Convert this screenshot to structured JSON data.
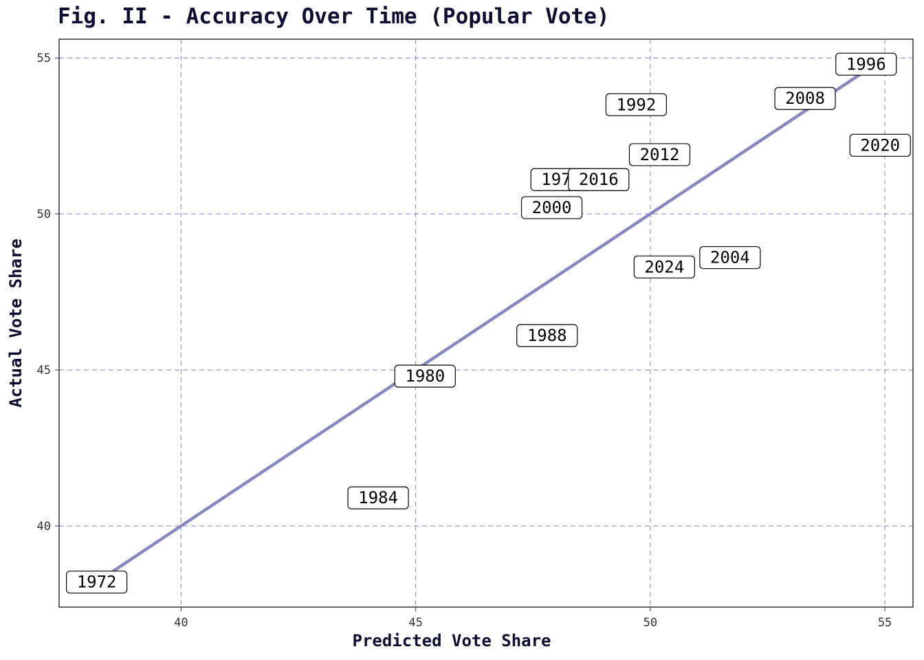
{
  "chart_data": {
    "type": "scatter",
    "title": "Fig. II - Accuracy Over Time (Popular Vote)",
    "xlabel": "Predicted Vote Share",
    "ylabel": "Actual Vote Share",
    "xlim": [
      37.4,
      55.6
    ],
    "ylim": [
      37.4,
      55.6
    ],
    "xticks": [
      40,
      45,
      50,
      55
    ],
    "yticks": [
      40,
      45,
      50,
      55
    ],
    "grid": true,
    "grid_color": "#8080cc",
    "line_color": "#8888c0",
    "reference_line": {
      "from": [
        38.2,
        38.2
      ],
      "to": [
        54.8,
        54.8
      ]
    },
    "points": [
      {
        "label": "1972",
        "x": 38.2,
        "y": 38.2
      },
      {
        "label": "1976",
        "x": 48.1,
        "y": 51.1
      },
      {
        "label": "1980",
        "x": 45.2,
        "y": 44.8
      },
      {
        "label": "1984",
        "x": 44.2,
        "y": 40.9
      },
      {
        "label": "1988",
        "x": 47.8,
        "y": 46.1
      },
      {
        "label": "1992",
        "x": 49.7,
        "y": 53.5
      },
      {
        "label": "1996",
        "x": 54.6,
        "y": 54.8
      },
      {
        "label": "2000",
        "x": 47.9,
        "y": 50.2
      },
      {
        "label": "2004",
        "x": 51.7,
        "y": 48.6
      },
      {
        "label": "2008",
        "x": 53.3,
        "y": 53.7
      },
      {
        "label": "2012",
        "x": 50.2,
        "y": 51.9
      },
      {
        "label": "2016",
        "x": 48.9,
        "y": 51.1
      },
      {
        "label": "2020",
        "x": 54.9,
        "y": 52.2
      },
      {
        "label": "2024",
        "x": 50.3,
        "y": 48.3
      }
    ]
  }
}
